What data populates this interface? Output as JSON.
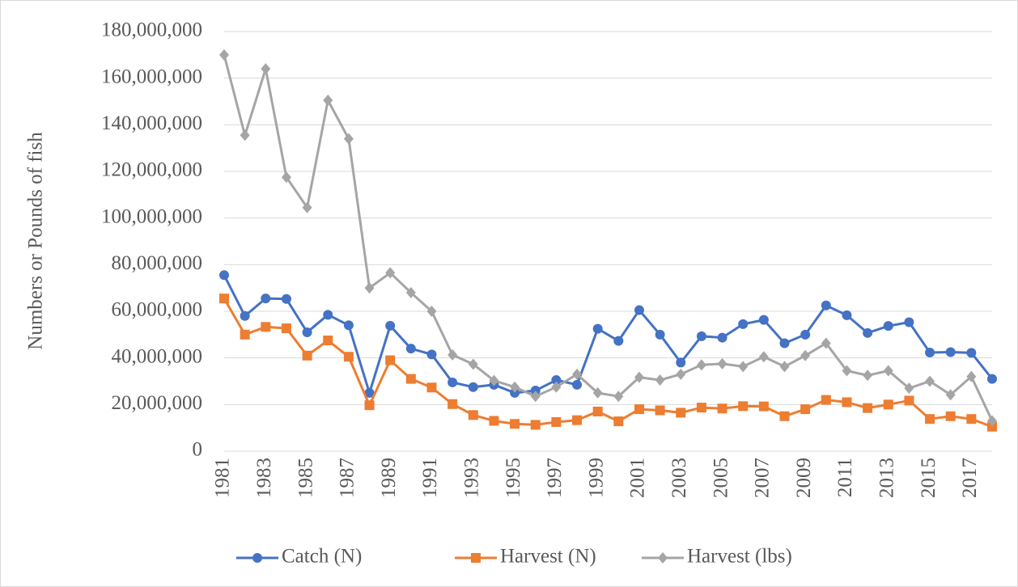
{
  "chart_data": {
    "type": "line",
    "y_label": "Numbers or Pounds of fish",
    "categories": [
      "1981",
      null,
      "1983",
      null,
      "1985",
      null,
      "1987",
      null,
      "1989",
      null,
      "1991",
      null,
      "1993",
      null,
      "1995",
      null,
      "1997",
      null,
      "1999",
      null,
      "2001",
      null,
      "2003",
      null,
      "2005",
      null,
      "2007",
      null,
      "2009",
      null,
      "2011",
      null,
      "2013",
      null,
      "2015",
      null,
      "2017",
      null
    ],
    "ylim": [
      0,
      180000000
    ],
    "yticks": [
      0,
      {
        "value": 20000000,
        "label": "20,000,000"
      },
      {
        "value": 40000000,
        "label": "40,000,000"
      },
      {
        "value": 60000000,
        "label": "60,000,000"
      },
      {
        "value": 80000000,
        "label": "80,000,000"
      },
      {
        "value": 100000000,
        "label": "100,000,000"
      },
      {
        "value": 120000000,
        "label": "120,000,000"
      },
      {
        "value": 140000000,
        "label": "140,000,000"
      },
      {
        "value": 160000000,
        "label": "160,000,000"
      },
      {
        "value": 180000000,
        "label": "180,000,000"
      }
    ],
    "grid": true,
    "legend": "bottom",
    "series": [
      {
        "name": "Catch (N)",
        "color": "#4472c4",
        "marker": "circle",
        "values": [
          75500000,
          58000000,
          65500000,
          65300000,
          51000000,
          58500000,
          54000000,
          25000000,
          53800000,
          44000000,
          41500000,
          29500000,
          27500000,
          28500000,
          25000000,
          26000000,
          30500000,
          28500000,
          52500000,
          47300000,
          60500000,
          50000000,
          38000000,
          49300000,
          48700000,
          54500000,
          56300000,
          46300000,
          50000000,
          62500000,
          58300000,
          50700000,
          53700000,
          55300000,
          42300000,
          42500000,
          42200000,
          31000000
        ]
      },
      {
        "name": "Harvest (N)",
        "color": "#ed7d31",
        "marker": "square",
        "values": [
          65500000,
          50000000,
          53300000,
          52700000,
          41000000,
          47500000,
          40500000,
          19700000,
          39000000,
          31000000,
          27300000,
          20200000,
          15500000,
          13000000,
          11700000,
          11300000,
          12500000,
          13300000,
          17000000,
          12800000,
          18000000,
          17500000,
          16500000,
          18700000,
          18300000,
          19300000,
          19200000,
          15000000,
          18000000,
          22000000,
          21000000,
          18500000,
          20000000,
          21700000,
          13800000,
          15000000,
          13800000,
          10500000
        ]
      },
      {
        "name": "Harvest (lbs)",
        "color": "#a5a5a5",
        "marker": "diamond",
        "values": [
          170000000,
          135500000,
          164000000,
          117500000,
          104500000,
          150500000,
          134000000,
          70000000,
          76500000,
          68000000,
          60000000,
          41300000,
          37300000,
          30300000,
          27500000,
          23500000,
          27500000,
          33000000,
          25000000,
          23500000,
          31700000,
          30500000,
          33000000,
          37000000,
          37500000,
          36300000,
          40500000,
          36300000,
          41000000,
          46300000,
          34500000,
          32500000,
          34500000,
          27000000,
          30000000,
          24200000,
          32000000,
          13000000
        ]
      }
    ]
  }
}
